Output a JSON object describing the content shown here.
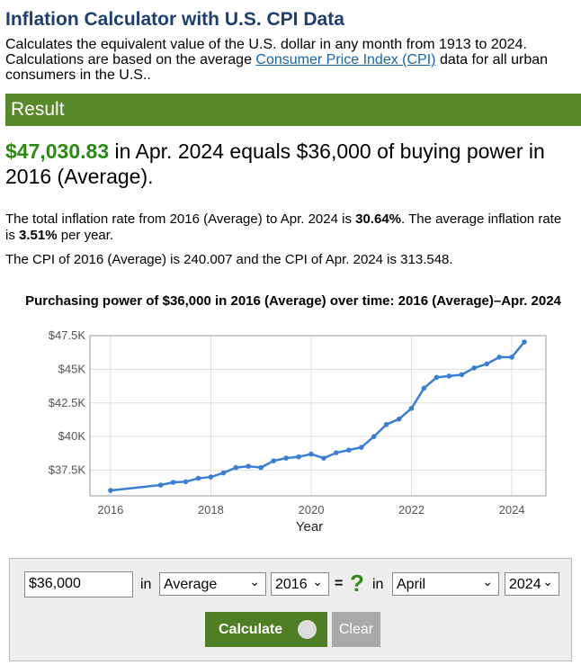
{
  "header": {
    "title": "Inflation Calculator with U.S. CPI Data",
    "description_before": "Calculates the equivalent value of the U.S. dollar in any month from 1913 to 2024. Calculations are based on the average",
    "link": "Consumer Price Index (CPI)",
    "description_after": "data for all urban consumers in the U.S.."
  },
  "result": {
    "heading": "Result",
    "amount": "$47,030.83",
    "statement": "in Apr. 2024 equals $36,000 of buying power in 2016 (Average).",
    "rate_before": "The total inflation rate from 2016 (Average) to Apr. 2024 is",
    "total_rate": "30.64%",
    "rate_middle": ". The average inflation rate is",
    "annual_rate": "3.51%",
    "rate_after": "per year.",
    "cpi_text": "The CPI of 2016 (Average) is 240.007 and the CPI of Apr. 2024 is 313.548."
  },
  "chart_data": {
    "type": "line",
    "title": "Purchasing power of $36,000 in 2016 (Average) over time: 2016 (Average)–Apr. 2024",
    "x_label": "Year",
    "color": "#3a7fd5",
    "grid": true,
    "x": [
      2016,
      2017,
      2017.25,
      2017.5,
      2017.75,
      2018,
      2018.25,
      2018.5,
      2018.75,
      2019,
      2019.25,
      2019.5,
      2019.75,
      2020,
      2020.25,
      2020.5,
      2020.75,
      2021,
      2021.25,
      2021.5,
      2021.75,
      2022,
      2022.25,
      2022.5,
      2022.75,
      2023,
      2023.25,
      2023.5,
      2023.75,
      2024,
      2024.25
    ],
    "values": [
      36000,
      36400,
      36600,
      36650,
      36900,
      37000,
      37300,
      37700,
      37800,
      37700,
      38200,
      38400,
      38500,
      38700,
      38400,
      38800,
      39000,
      39200,
      40000,
      40900,
      41300,
      42100,
      43600,
      44400,
      44500,
      44600,
      45100,
      45400,
      45900,
      45900,
      47030.83
    ],
    "xlim": [
      2015.59,
      2024.68
    ],
    "ylim": [
      35600,
      47500
    ],
    "xticks": [
      2016,
      2018,
      2020,
      2022,
      2024
    ],
    "yticks": [
      {
        "value": 37500,
        "label": "$37.5K"
      },
      {
        "value": 40000,
        "label": "$40K"
      },
      {
        "value": 42500,
        "label": "$42.5K"
      },
      {
        "value": 45000,
        "label": "$45K"
      },
      {
        "value": 47500,
        "label": "$47.5K"
      }
    ]
  },
  "form": {
    "amount": "$36,000",
    "in1": "in",
    "month_from": "Average",
    "year_from": "2016",
    "equals": "=",
    "unknown": "?",
    "in2": "in",
    "month_to": "April",
    "year_to": "2024",
    "calculate": "Calculate",
    "clear": "Clear"
  }
}
